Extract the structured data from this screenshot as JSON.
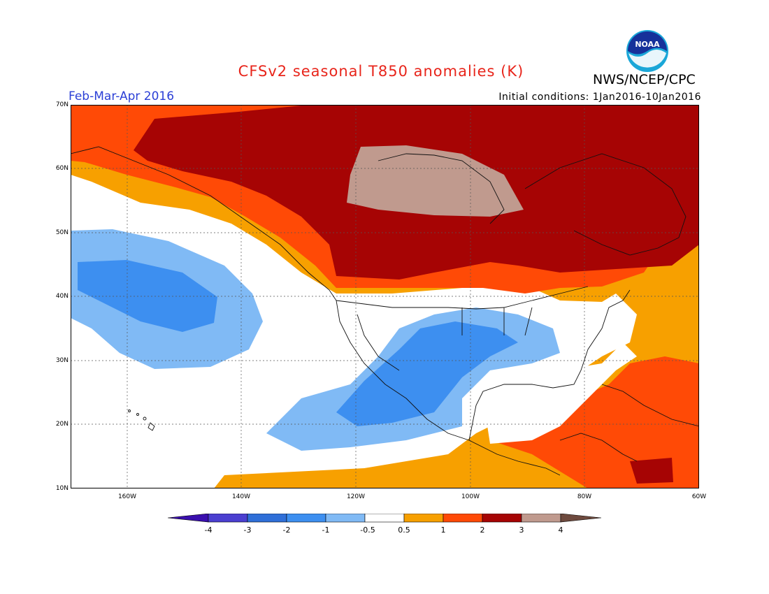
{
  "header": {
    "title": "CFSv2 seasonal T850 anomalies (K)",
    "agency": "NWS/NCEP/CPC",
    "period": "Feb-Mar-Apr 2016",
    "initial_conditions": "Initial conditions: 1Jan2016-10Jan2016",
    "logo_text": "NOAA"
  },
  "colors": {
    "title": "#e8251b",
    "period": "#2b3fd6",
    "neg4": "#3a0fae",
    "neg3": "#4b3fd0",
    "neg2": "#2f6fd8",
    "neg1": "#3d8ff0",
    "neg05": "#80baf5",
    "neutral": "#ffffff",
    "pos05": "#f7a000",
    "pos1": "#ff4a06",
    "pos2": "#a60404",
    "pos3": "#c09a8e",
    "pos4": "#6e4a3e"
  },
  "map": {
    "lat_labels": [
      "70N",
      "60N",
      "50N",
      "40N",
      "30N",
      "20N",
      "10N"
    ],
    "lon_labels": [
      "160W",
      "140W",
      "120W",
      "100W",
      "80W",
      "60W"
    ]
  },
  "colorbar": {
    "labels": [
      "-4",
      "-3",
      "-2",
      "-1",
      "-0.5",
      "0.5",
      "1",
      "2",
      "3",
      "4"
    ]
  }
}
